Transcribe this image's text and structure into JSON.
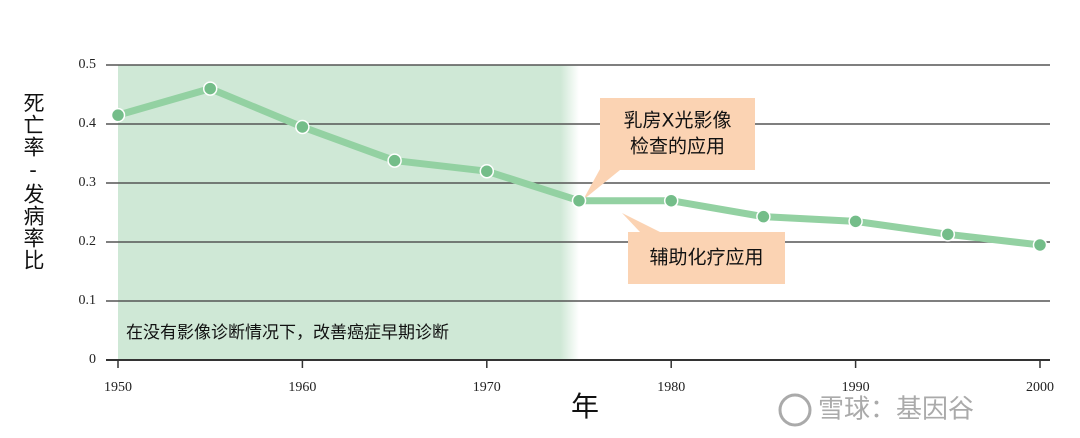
{
  "chart_data": {
    "type": "line",
    "y_label": "死亡率-发病率比",
    "x_label": "年",
    "x": [
      1950,
      1955,
      1960,
      1965,
      1970,
      1975,
      1980,
      1985,
      1990,
      1995,
      2000
    ],
    "values": [
      0.415,
      0.46,
      0.395,
      0.338,
      0.32,
      0.27,
      0.27,
      0.243,
      0.235,
      0.213,
      0.195
    ],
    "color": "#93d1a2",
    "marker_color": "#74bd89",
    "xlim": [
      1950,
      2000
    ],
    "xticks": [
      1950,
      1960,
      1970,
      1980,
      1990,
      2000
    ],
    "ylim": [
      0,
      0.5
    ],
    "yticks": [
      0,
      0.1,
      0.2,
      0.3,
      0.4,
      0.5
    ],
    "grid": true,
    "shaded_region": {
      "x_range": [
        1950,
        1975
      ],
      "color": "#cfe8d6",
      "text": "在没有影像诊断情况下，改善癌症早期诊断"
    },
    "callouts": [
      {
        "lines": [
          "乳房X光影像",
          "检查的应用"
        ],
        "color": "#fbd3b3"
      },
      {
        "lines": [
          "辅助化疗应用"
        ],
        "color": "#fbd3b3"
      }
    ],
    "watermark": "雪球：基因谷"
  }
}
